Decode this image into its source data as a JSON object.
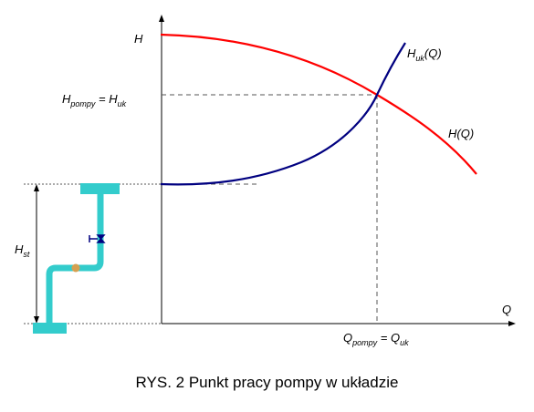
{
  "colors": {
    "pump_curve": "#ff0000",
    "system_curve": "#000080",
    "pipe": "#33cccc",
    "axis": "#000000",
    "guide": "#555555",
    "pump_marker": "#d4a050"
  },
  "labels": {
    "axis_y": "H",
    "axis_x": "Q",
    "system_curve_main": "H",
    "system_curve_sub": "uk",
    "system_curve_tail": "(Q)",
    "pump_curve": "H(Q)",
    "op_head_main": "H",
    "op_head_sub": "pompy",
    "op_head_eq": " = H",
    "op_head_sub2": "uk",
    "op_flow_main": "Q",
    "op_flow_sub": "pompy",
    "op_flow_eq": " = Q",
    "op_flow_sub2": "uk",
    "static_main": "H",
    "static_sub": "st"
  },
  "caption": "RYS. 2 Punkt pracy pompy w układzie"
}
